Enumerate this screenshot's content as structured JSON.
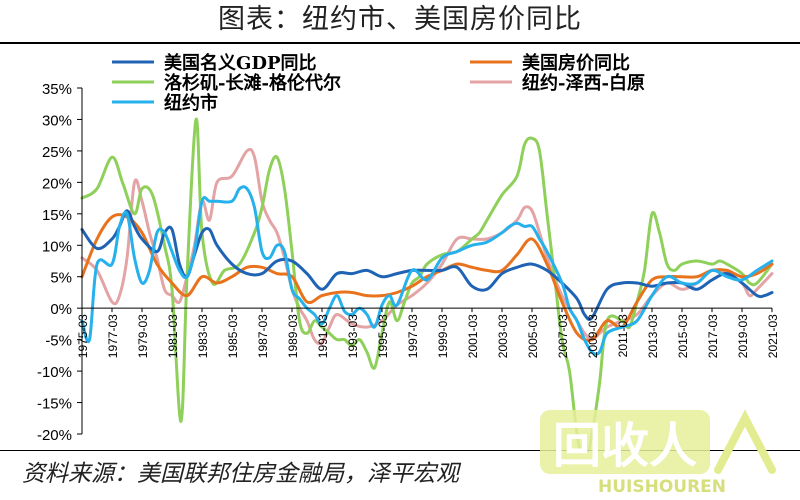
{
  "title": "图表：纽约市、美国房价同比",
  "source": "资料来源：美国联邦住房金融局，泽平宏观",
  "watermark": {
    "big": "回收人",
    "small": "HUISHOUREN"
  },
  "chart_data": {
    "type": "line",
    "ylim": [
      -0.2,
      0.35
    ],
    "yticks": [
      "-20%",
      "-15%",
      "-10%",
      "-5%",
      "0%",
      "5%",
      "10%",
      "15%",
      "20%",
      "25%",
      "30%",
      "35%"
    ],
    "ytick_values": [
      -0.2,
      -0.15,
      -0.1,
      -0.05,
      0,
      0.05,
      0.1,
      0.15,
      0.2,
      0.25,
      0.3,
      0.35
    ],
    "xticks": [
      "1975-03",
      "1977-03",
      "1979-03",
      "1981-03",
      "1983-03",
      "1985-03",
      "1987-03",
      "1989-03",
      "1991-03",
      "1993-03",
      "1995-03",
      "1997-03",
      "1999-03",
      "2001-03",
      "2003-03",
      "2005-03",
      "2007-03",
      "2009-03",
      "2011-03",
      "2013-03",
      "2015-03",
      "2017-03",
      "2019-03",
      "2021-03"
    ],
    "xtick_years": [
      1975,
      1977,
      1979,
      1981,
      1983,
      1985,
      1987,
      1989,
      1991,
      1993,
      1995,
      1997,
      1999,
      2001,
      2003,
      2005,
      2007,
      2009,
      2011,
      2013,
      2015,
      2017,
      2019,
      2021
    ],
    "xlim": [
      1975,
      2021
    ],
    "grid": false,
    "legend_position": "top",
    "series": [
      {
        "name": "美国名义GDP同比",
        "color": "#1f63b5",
        "x": [
          1975,
          1976,
          1977,
          1977.5,
          1978,
          1978.5,
          1979,
          1980,
          1980.5,
          1981,
          1981.5,
          1982,
          1982.5,
          1983,
          1983.5,
          1984,
          1985,
          1986,
          1987,
          1988,
          1989,
          1990,
          1991,
          1992,
          1993,
          1994,
          1995,
          1996,
          1997,
          1998,
          1999,
          2000,
          2001,
          2002,
          2003,
          2004,
          2005,
          2006,
          2007,
          2008,
          2008.5,
          2009,
          2010,
          2011,
          2012,
          2013,
          2014,
          2015,
          2016,
          2017,
          2018,
          2019,
          2020,
          2020.5,
          2021
        ],
        "y": [
          0.125,
          0.095,
          0.11,
          0.13,
          0.155,
          0.13,
          0.11,
          0.09,
          0.12,
          0.125,
          0.07,
          0.05,
          0.085,
          0.12,
          0.125,
          0.1,
          0.07,
          0.055,
          0.055,
          0.075,
          0.075,
          0.055,
          0.03,
          0.055,
          0.055,
          0.06,
          0.05,
          0.055,
          0.06,
          0.06,
          0.06,
          0.065,
          0.035,
          0.03,
          0.055,
          0.065,
          0.07,
          0.06,
          0.04,
          0.015,
          -0.01,
          -0.015,
          0.03,
          0.04,
          0.04,
          0.035,
          0.04,
          0.04,
          0.03,
          0.045,
          0.055,
          0.04,
          0.02,
          0.02,
          0.025
        ]
      },
      {
        "name": "美国房价同比",
        "color": "#e8731c",
        "x": [
          1975,
          1976,
          1977,
          1978,
          1979,
          1980,
          1981,
          1982,
          1983,
          1984,
          1985,
          1986,
          1987,
          1988,
          1989,
          1990,
          1991,
          1992,
          1993,
          1994,
          1995,
          1996,
          1997,
          1998,
          1999,
          2000,
          2001,
          2002,
          2003,
          2004,
          2005,
          2006,
          2007,
          2008,
          2009,
          2010,
          2011,
          2012,
          2013,
          2014,
          2015,
          2016,
          2017,
          2018,
          2019,
          2020,
          2021
        ],
        "y": [
          0.05,
          0.11,
          0.145,
          0.145,
          0.12,
          0.07,
          0.04,
          0.02,
          0.05,
          0.04,
          0.05,
          0.065,
          0.065,
          0.055,
          0.05,
          0.01,
          0.02,
          0.025,
          0.025,
          0.02,
          0.02,
          0.025,
          0.035,
          0.05,
          0.06,
          0.07,
          0.065,
          0.06,
          0.06,
          0.085,
          0.11,
          0.07,
          0.01,
          -0.04,
          -0.05,
          -0.02,
          -0.03,
          0.01,
          0.045,
          0.05,
          0.05,
          0.05,
          0.06,
          0.06,
          0.05,
          0.055,
          0.07
        ]
      },
      {
        "name": "洛杉矶-长滩-格伦代尔",
        "color": "#8ed05a",
        "x": [
          1975,
          1976,
          1977,
          1977.7,
          1978.5,
          1979,
          1979.7,
          1980.5,
          1981,
          1981.6,
          1982,
          1982.6,
          1983,
          1983.7,
          1984.5,
          1985.5,
          1986.5,
          1987,
          1987.5,
          1988,
          1988.5,
          1989,
          1989.5,
          1990,
          1990.5,
          1991,
          1991.5,
          1992,
          1992.5,
          1993,
          1993.5,
          1994,
          1994.5,
          1995,
          1995.5,
          1996,
          1996.5,
          1997,
          1997.5,
          1998,
          1999,
          2000,
          2001,
          2001.5,
          2002,
          2003,
          2004,
          2004.5,
          2005,
          2005.5,
          2006,
          2006.5,
          2007,
          2007.5,
          2008,
          2008.5,
          2009,
          2009.5,
          2010,
          2011,
          2011.5,
          2012,
          2012.5,
          2013,
          2013.5,
          2014,
          2014.5,
          2015,
          2016,
          2017,
          2017.5,
          2018,
          2019,
          2019.5,
          2020,
          2021
        ],
        "y": [
          0.175,
          0.19,
          0.24,
          0.2,
          0.15,
          0.19,
          0.18,
          0.1,
          0.03,
          -0.18,
          0.05,
          0.3,
          0.12,
          0.04,
          0.06,
          0.07,
          0.12,
          0.16,
          0.22,
          0.24,
          0.19,
          0.09,
          -0.02,
          -0.04,
          -0.02,
          -0.03,
          -0.04,
          -0.05,
          -0.05,
          -0.06,
          -0.05,
          -0.07,
          -0.095,
          -0.04,
          0.01,
          -0.02,
          0.01,
          0.04,
          0.05,
          0.07,
          0.085,
          0.09,
          0.11,
          0.12,
          0.14,
          0.18,
          0.21,
          0.26,
          0.27,
          0.25,
          0.15,
          0.05,
          -0.05,
          -0.1,
          -0.2,
          -0.25,
          -0.2,
          -0.12,
          -0.02,
          -0.02,
          -0.03,
          0.01,
          0.06,
          0.15,
          0.12,
          0.07,
          0.06,
          0.07,
          0.075,
          0.07,
          0.075,
          0.07,
          0.055,
          0.04,
          0.04,
          0.07
        ]
      },
      {
        "name": "纽约-泽西-白原",
        "color": "#e4a3a5",
        "x": [
          1975,
          1976,
          1977,
          1977.5,
          1978,
          1978.5,
          1979,
          1979.5,
          1980,
          1980.5,
          1981,
          1981.5,
          1982,
          1982.5,
          1983,
          1983.5,
          1984,
          1985,
          1986,
          1986.5,
          1987,
          1987.5,
          1988,
          1988.5,
          1989,
          1989.5,
          1990,
          1990.5,
          1991,
          1991.5,
          1992,
          1993,
          1994,
          1995,
          1996,
          1997,
          1998,
          1999,
          2000,
          2001,
          2002,
          2003,
          2004,
          2004.5,
          2005,
          2005.5,
          2006,
          2007,
          2008,
          2008.5,
          2009,
          2009.5,
          2010,
          2011,
          2012,
          2013,
          2014,
          2015,
          2016,
          2017,
          2018,
          2019,
          2019.5,
          2020,
          2021
        ],
        "y": [
          0.08,
          0.06,
          0.01,
          0.02,
          0.08,
          0.2,
          0.17,
          0.12,
          0.08,
          0.03,
          0.02,
          0.01,
          0.05,
          0.1,
          0.17,
          0.14,
          0.2,
          0.21,
          0.25,
          0.24,
          0.17,
          0.14,
          0.12,
          0.08,
          0.03,
          0,
          -0.02,
          -0.05,
          -0.055,
          -0.03,
          -0.01,
          -0.025,
          -0.03,
          -0.02,
          0.005,
          0.02,
          0.04,
          0.07,
          0.11,
          0.11,
          0.11,
          0.12,
          0.14,
          0.16,
          0.155,
          0.12,
          0.08,
          0.02,
          -0.02,
          -0.04,
          -0.05,
          -0.04,
          -0.03,
          -0.02,
          -0.01,
          0.02,
          0.04,
          0.03,
          0.04,
          0.06,
          0.055,
          0.04,
          0.02,
          0.03,
          0.055
        ]
      },
      {
        "name": "纽约市",
        "color": "#26b1ec",
        "x": [
          1975,
          1975.5,
          1976,
          1977,
          1977.5,
          1978,
          1978.5,
          1979,
          1979.5,
          1980,
          1980.5,
          1981,
          1981.5,
          1982,
          1982.5,
          1983,
          1983.5,
          1984,
          1985,
          1985.5,
          1986,
          1986.5,
          1987,
          1987.5,
          1988,
          1988.5,
          1989,
          1989.5,
          1990,
          1990.5,
          1991,
          1991.5,
          1992,
          1992.5,
          1993,
          1993.5,
          1994,
          1994.5,
          1995,
          1995.5,
          1996,
          1997,
          1998,
          1999,
          2000,
          2001,
          2002,
          2003,
          2003.5,
          2004,
          2004.5,
          2005,
          2005.5,
          2006,
          2007,
          2007.5,
          2008,
          2008.5,
          2009,
          2009.5,
          2010,
          2011,
          2012,
          2013,
          2014,
          2015,
          2016,
          2017,
          2018,
          2019,
          2020,
          2021
        ],
        "y": [
          -0.02,
          -0.05,
          0.07,
          0.07,
          0.13,
          0.15,
          0.08,
          0.04,
          0.06,
          0.12,
          0.12,
          0.09,
          0.06,
          0.05,
          0.09,
          0.17,
          0.17,
          0.17,
          0.17,
          0.19,
          0.19,
          0.16,
          0.09,
          0.08,
          0.1,
          0.09,
          0.03,
          0.015,
          0.0,
          -0.01,
          -0.025,
          0.0,
          0.02,
          -0.005,
          -0.01,
          0.0,
          -0.01,
          -0.03,
          0.005,
          0.02,
          0.005,
          0.06,
          0.045,
          0.08,
          0.09,
          0.1,
          0.105,
          0.12,
          0.13,
          0.135,
          0.13,
          0.13,
          0.11,
          0.09,
          0.04,
          0.0,
          -0.02,
          -0.05,
          -0.07,
          -0.07,
          -0.04,
          -0.03,
          -0.02,
          0.02,
          0.05,
          0.04,
          0.04,
          0.06,
          0.05,
          0.045,
          0.06,
          0.075
        ]
      }
    ]
  }
}
